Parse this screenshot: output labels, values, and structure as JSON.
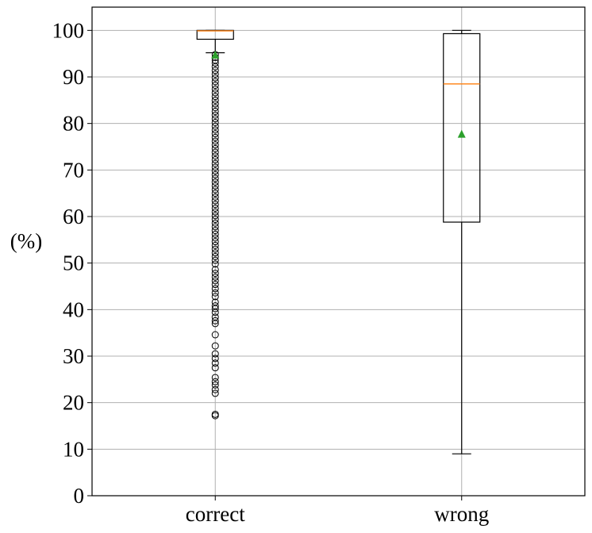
{
  "chart_data": {
    "type": "boxplot",
    "title": "",
    "xlabel": "",
    "ylabel": "(%)",
    "ylim": [
      0,
      105
    ],
    "yticks": [
      0,
      10,
      20,
      30,
      40,
      50,
      60,
      70,
      80,
      90,
      100
    ],
    "grid": true,
    "categories": [
      "correct",
      "wrong"
    ],
    "boxes": [
      {
        "category": "correct",
        "whisker_low": 95.2,
        "q1": 98.1,
        "median": 99.9,
        "q3": 100.0,
        "whisker_high": 100.0,
        "mean": 94.8,
        "outliers": [
          17.2,
          17.5,
          22.0,
          22.8,
          23.8,
          24.5,
          25.4,
          27.5,
          28.5,
          29.5,
          30.5,
          32.2,
          34.6,
          37.0,
          37.6,
          38.4,
          39.4,
          40.2,
          40.8,
          41.6,
          42.8,
          43.6,
          44.5,
          45.4,
          46.2,
          47.0,
          47.8,
          48.6,
          49.8,
          50.6,
          51.4,
          52.2,
          53.0,
          53.8,
          54.6,
          55.4,
          56.2,
          57.0,
          57.8,
          58.6,
          59.4,
          60.2,
          61.0,
          61.8,
          62.6,
          63.4,
          64.2,
          65.0,
          65.8,
          66.6,
          67.4,
          68.2,
          69.0,
          69.8,
          70.6,
          71.4,
          72.2,
          73.0,
          73.8,
          74.6,
          75.4,
          76.2,
          77.0,
          77.8,
          78.6,
          79.4,
          80.2,
          81.0,
          81.8,
          82.6,
          83.4,
          84.2,
          85.0,
          85.8,
          86.6,
          87.4,
          88.2,
          89.0,
          89.8,
          90.6,
          91.4,
          92.2,
          93.0,
          93.6,
          94.2,
          94.8
        ]
      },
      {
        "category": "wrong",
        "whisker_low": 9.0,
        "q1": 58.8,
        "median": 88.5,
        "q3": 99.3,
        "whisker_high": 100.0,
        "mean": 77.8,
        "outliers": []
      }
    ],
    "colors": {
      "box": "#000000",
      "median": "#ff7f0e",
      "mean": "#2ca02c",
      "grid": "#b0b0b0"
    }
  }
}
